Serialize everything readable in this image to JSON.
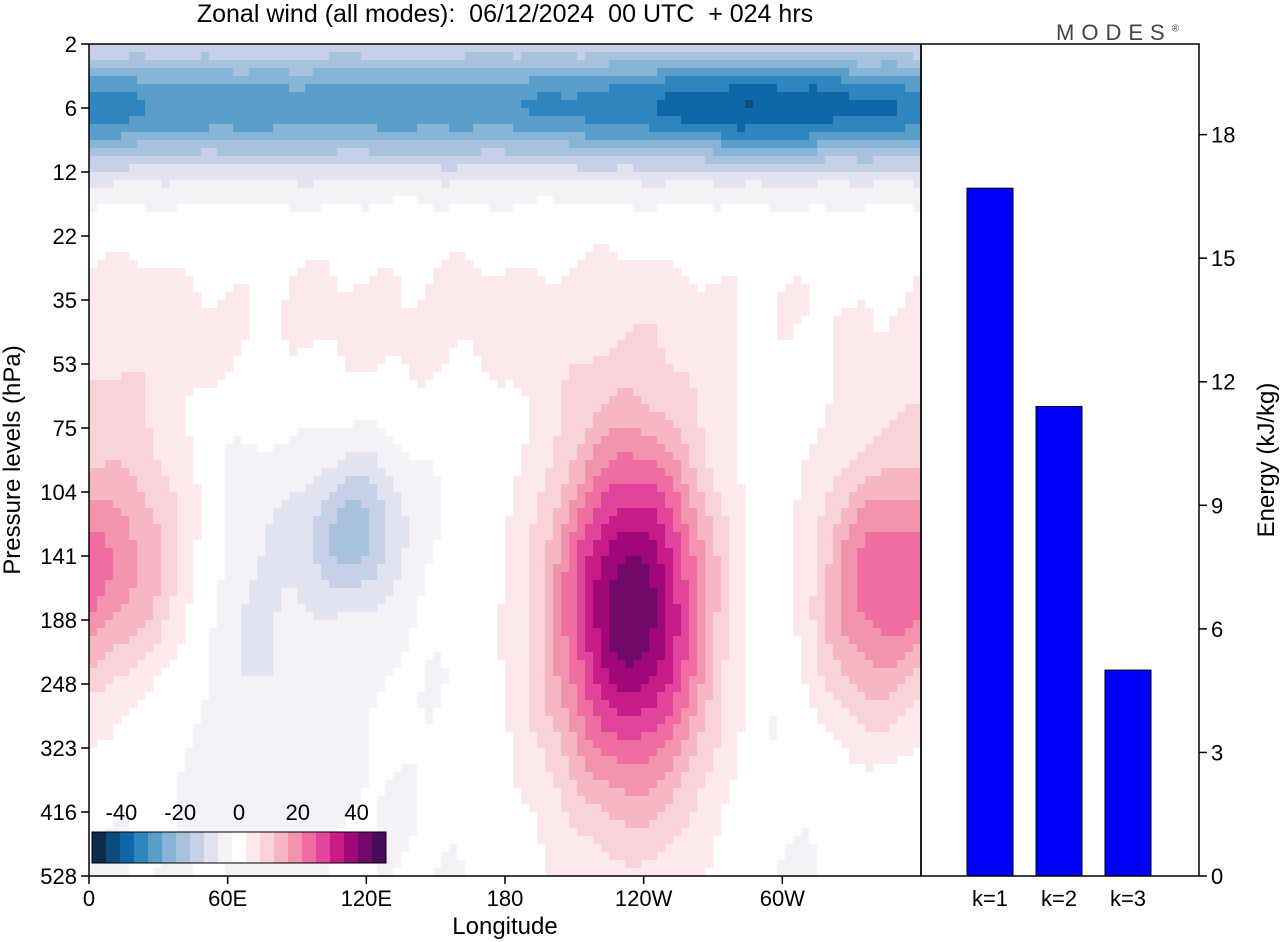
{
  "title": "Zonal wind (all modes):  06/12/2024  00 UTC  + 024 hrs",
  "logo": "MODES",
  "logo_mark": "®",
  "colors": {
    "bar": "#0000ff",
    "palette": [
      "#0b2b4f",
      "#0d4a7d",
      "#0e67a6",
      "#2f85bd",
      "#5a9ecb",
      "#87b3d6",
      "#a8c2de",
      "#c6d0e6",
      "#e2e3f0",
      "#f4f1f7",
      "#ffffff",
      "#fde9ec",
      "#fad3da",
      "#f6b6c3",
      "#f394ae",
      "#ef6da0",
      "#e2449b",
      "#c71c87",
      "#a0087a",
      "#720868",
      "#4a0c58"
    ]
  },
  "chart_data": [
    {
      "type": "heatmap",
      "title": "Zonal wind (all modes):  06/12/2024  00 UTC  + 024 hrs",
      "xlabel": "Longitude",
      "ylabel": "Pressure levels (hPa)",
      "x_ticks": [
        "0",
        "60E",
        "120E",
        "180",
        "120W",
        "60W"
      ],
      "x_tick_values": [
        0,
        60,
        120,
        180,
        240,
        300
      ],
      "xlim": [
        0,
        360
      ],
      "y_ticks": [
        "2",
        "6",
        "12",
        "22",
        "35",
        "53",
        "75",
        "104",
        "141",
        "188",
        "248",
        "323",
        "416",
        "528"
      ],
      "colorbar": {
        "tick_labels": [
          "-40",
          "-20",
          "0",
          "20",
          "40"
        ],
        "tick_values": [
          -40,
          -20,
          0,
          20,
          40
        ],
        "range": [
          -50,
          50
        ],
        "step": 5
      },
      "features": [
        {
          "lon": 150,
          "level_index": 0.9,
          "value": -20,
          "sx": 160,
          "sy": 0.7
        },
        {
          "lon": 300,
          "level_index": 1.0,
          "value": -23,
          "sx": 60,
          "sy": 0.6
        },
        {
          "lon": 90,
          "level_index": 1.1,
          "value": -9,
          "sx": 120,
          "sy": 0.6
        },
        {
          "lon": 160,
          "level_index": 4.3,
          "value": 6,
          "sx": 200,
          "sy": 1.2
        },
        {
          "lon": 15,
          "level_index": 5.0,
          "value": 5,
          "sx": 18,
          "sy": 1.0
        },
        {
          "lon": 115,
          "level_index": 7.6,
          "value": -18,
          "sx": 14,
          "sy": 0.8
        },
        {
          "lon": 75,
          "level_index": 9.0,
          "value": -6,
          "sx": 18,
          "sy": 1.8
        },
        {
          "lon": 15,
          "level_index": 8.0,
          "value": 19,
          "sx": 22,
          "sy": 1.3
        },
        {
          "lon": 235,
          "level_index": 8.6,
          "value": 42,
          "sx": 24,
          "sy": 1.9
        },
        {
          "lon": 235,
          "level_index": 10.6,
          "value": 10,
          "sx": 36,
          "sy": 2.3
        },
        {
          "lon": 338,
          "level_index": 8.6,
          "value": 24,
          "sx": 20,
          "sy": 1.5
        },
        {
          "lon": 290,
          "level_index": 10.0,
          "value": -4,
          "sx": 20,
          "sy": 2.0
        }
      ]
    },
    {
      "type": "bar",
      "categories": [
        "k=1",
        "k=2",
        "k=3"
      ],
      "values": [
        16.7,
        11.4,
        5.0
      ],
      "ylabel": "Energy (kJ/kg)",
      "ylim": [
        0,
        20.2
      ],
      "y_ticks": [
        0,
        3,
        6,
        9,
        12,
        15,
        18
      ]
    }
  ]
}
